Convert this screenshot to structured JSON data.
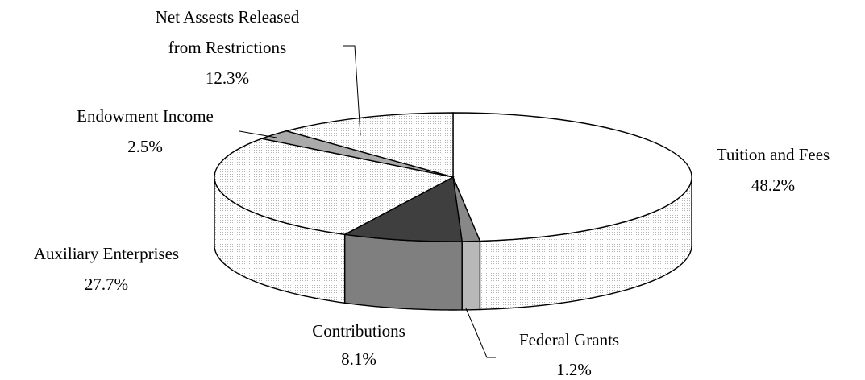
{
  "chart_data": {
    "type": "pie",
    "style": "3d-exploded-perspective",
    "title": "",
    "legend": "none",
    "slices": [
      {
        "name": "Tuition and Fees",
        "value": 48.2,
        "label": "48.2%",
        "fill": "#ffffff",
        "side_fill": "#ececec"
      },
      {
        "name": "Federal Grants",
        "value": 1.2,
        "label": "1.2%",
        "fill": "#888888",
        "side_fill": "#b8b8b8"
      },
      {
        "name": "Contributions",
        "value": 8.1,
        "label": "8.1%",
        "fill": "#3f3f3f",
        "side_fill": "#7f7f7f"
      },
      {
        "name": "Auxiliary Enterprises",
        "value": 27.7,
        "label": "27.7%",
        "fill": "#e6e6e6",
        "side_fill": "#f0f0f0"
      },
      {
        "name": "Endowment Income",
        "value": 2.5,
        "label": "2.5%",
        "fill": "#aaaaaa",
        "side_fill": "#c4c4c4"
      },
      {
        "name": "Net Assests Released from Restrictions",
        "name_lines": [
          "Net Assests Released",
          "from Restrictions"
        ],
        "value": 12.3,
        "label": "12.3%",
        "fill": "#eeeeee",
        "side_fill": "#f2f2f2"
      }
    ]
  }
}
